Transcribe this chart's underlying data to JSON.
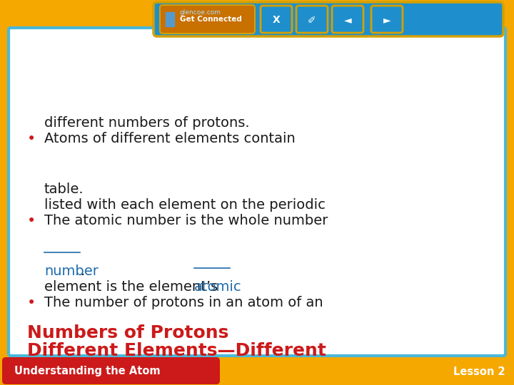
{
  "background_outer": "#F5A800",
  "background_inner": "#FFFFFF",
  "header_bg": "#CC1A1A",
  "header_text": "Understanding the Atom",
  "header_text_color": "#FFFFFF",
  "lesson_text": "Lesson 2",
  "lesson_text_color": "#FFFFFF",
  "border_color": "#4AB8D8",
  "title_text_line1": "Different Elements—Different",
  "title_text_line2": "Numbers of Protons",
  "title_color": "#CC1A1A",
  "bullet_color": "#CC1A1A",
  "body_color": "#1A1A1A",
  "link_color": "#1E6BAD",
  "bullet1_line1": "The number of protons in an atom of an",
  "bullet1_line2_normal": "element is the element’s ",
  "bullet1_line2_link": "atomic",
  "bullet1_line3_link": "number",
  "bullet1_line3_normal": ".",
  "bullet2_line1": "The atomic number is the whole number",
  "bullet2_line2": "listed with each element on the periodic",
  "bullet2_line3": "table.",
  "bullet3_line1": "Atoms of different elements contain",
  "bullet3_line2": "different numbers of protons.",
  "footer_bg": "#1E8FCC",
  "footer_text": "Get Connected",
  "footer_subtext": "glencoe.com"
}
